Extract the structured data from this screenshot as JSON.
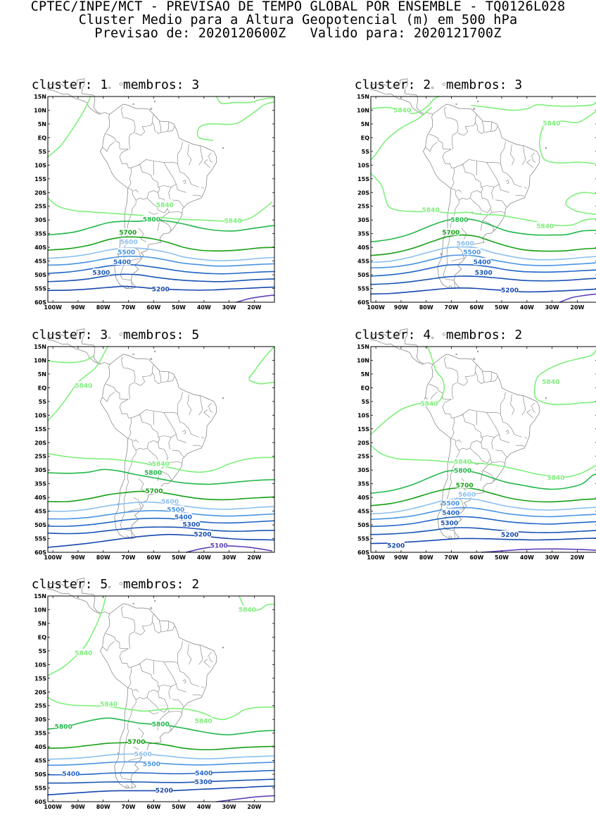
{
  "header": {
    "line1": "CPTEC/INPE/MCT - PREVISAO DE TEMPO GLOBAL POR ENSEMBLE - TQ0126L028",
    "line2": "Cluster Medio para a Altura Geopotencial (m) em 500 hPa",
    "line3": "Previsao de: 2020120600Z   Valido para: 2020121700Z"
  },
  "axes": {
    "lat_labels": [
      "15N",
      "10N",
      "5N",
      "EQ",
      "5S",
      "10S",
      "15S",
      "20S",
      "25S",
      "30S",
      "35S",
      "40S",
      "45S",
      "50S",
      "55S",
      "60S"
    ],
    "lon_labels": [
      "100W",
      "90W",
      "80W",
      "70W",
      "60W",
      "50W",
      "40W",
      "30W",
      "20W"
    ]
  },
  "level_colors": {
    "5840": "#7ef07a",
    "5800": "#22b84a",
    "5700": "#16a016",
    "5600": "#8cc0f0",
    "5500": "#4a94e2",
    "5400": "#2266c8",
    "5300": "#1a54b4",
    "5200": "#1648b0",
    "5100": "#6040b8"
  },
  "panels": [
    {
      "title": "cluster: 1  membros: 3",
      "labels": [
        {
          "text": "5840",
          "lon": -55.5,
          "lat": -24.5
        },
        {
          "text": "5840",
          "lon": -28.5,
          "lat": -30.3
        },
        {
          "text": "5800",
          "lon": -60.8,
          "lat": -29.8
        },
        {
          "text": "5700",
          "lon": -70.2,
          "lat": -34.6
        },
        {
          "text": "5600",
          "lon": -69.8,
          "lat": -38.0
        },
        {
          "text": "5500",
          "lon": -70.8,
          "lat": -41.8
        },
        {
          "text": "5400",
          "lon": -72.5,
          "lat": -45.4
        },
        {
          "text": "5300",
          "lon": -80.8,
          "lat": -49.2
        },
        {
          "text": "5200",
          "lon": -57.2,
          "lat": -55.2
        }
      ]
    },
    {
      "title": "cluster: 2  membros: 3",
      "labels": [
        {
          "text": "5840",
          "lon": -89.5,
          "lat": 10.0
        },
        {
          "text": "5840",
          "lon": -30.2,
          "lat": 5.2
        },
        {
          "text": "5840",
          "lon": -78.2,
          "lat": -26.4
        },
        {
          "text": "5840",
          "lon": -32.8,
          "lat": -32.2
        },
        {
          "text": "5800",
          "lon": -66.8,
          "lat": -30.0
        },
        {
          "text": "5700",
          "lon": -70.2,
          "lat": -34.6
        },
        {
          "text": "5600",
          "lon": -64.5,
          "lat": -38.6
        },
        {
          "text": "5500",
          "lon": -61.8,
          "lat": -41.8
        },
        {
          "text": "5400",
          "lon": -57.8,
          "lat": -45.4
        },
        {
          "text": "5300",
          "lon": -57.2,
          "lat": -49.2
        },
        {
          "text": "5200",
          "lon": -46.8,
          "lat": -55.6
        }
      ]
    },
    {
      "title": "cluster: 3  membros: 5",
      "labels": [
        {
          "text": "5840",
          "lon": -87.8,
          "lat": 0.8
        },
        {
          "text": "5840",
          "lon": -57.2,
          "lat": -27.8
        },
        {
          "text": "5800",
          "lon": -60.2,
          "lat": -31.0
        },
        {
          "text": "5700",
          "lon": -59.8,
          "lat": -37.6
        },
        {
          "text": "5600",
          "lon": -53.5,
          "lat": -41.5
        },
        {
          "text": "5500",
          "lon": -51.2,
          "lat": -44.5
        },
        {
          "text": "5400",
          "lon": -48.2,
          "lat": -47.2
        },
        {
          "text": "5300",
          "lon": -45.0,
          "lat": -49.8
        },
        {
          "text": "5200",
          "lon": -40.5,
          "lat": -53.5
        },
        {
          "text": "5100",
          "lon": -34.0,
          "lat": -57.5
        }
      ]
    },
    {
      "title": "cluster: 4  membros: 2",
      "labels": [
        {
          "text": "5840",
          "lon": -78.8,
          "lat": -5.8
        },
        {
          "text": "5840",
          "lon": -30.5,
          "lat": 2.2
        },
        {
          "text": "5840",
          "lon": -65.5,
          "lat": -27.0
        },
        {
          "text": "5840",
          "lon": -28.5,
          "lat": -32.8
        },
        {
          "text": "5800",
          "lon": -65.5,
          "lat": -30.2
        },
        {
          "text": "5700",
          "lon": -64.8,
          "lat": -35.6
        },
        {
          "text": "5600",
          "lon": -63.8,
          "lat": -39.0
        },
        {
          "text": "5500",
          "lon": -70.2,
          "lat": -42.2
        },
        {
          "text": "5400",
          "lon": -70.2,
          "lat": -45.6
        },
        {
          "text": "5300",
          "lon": -70.8,
          "lat": -49.4
        },
        {
          "text": "5200",
          "lon": -92.0,
          "lat": -57.6
        },
        {
          "text": "5200",
          "lon": -46.8,
          "lat": -53.6
        }
      ]
    },
    {
      "title": "cluster: 5  membros: 2",
      "labels": [
        {
          "text": "5840",
          "lon": -22.8,
          "lat": 10.0
        },
        {
          "text": "5840",
          "lon": -87.8,
          "lat": -5.8
        },
        {
          "text": "5840",
          "lon": -77.8,
          "lat": -24.4
        },
        {
          "text": "5840",
          "lon": -40.2,
          "lat": -30.6
        },
        {
          "text": "5800",
          "lon": -95.8,
          "lat": -32.6
        },
        {
          "text": "5800",
          "lon": -57.2,
          "lat": -31.8
        },
        {
          "text": "5700",
          "lon": -66.8,
          "lat": -38.2
        },
        {
          "text": "5600",
          "lon": -64.2,
          "lat": -42.6
        },
        {
          "text": "5500",
          "lon": -60.8,
          "lat": -46.2
        },
        {
          "text": "5400",
          "lon": -92.8,
          "lat": -49.8
        },
        {
          "text": "5400",
          "lon": -40.0,
          "lat": -49.6
        },
        {
          "text": "5300",
          "lon": -40.2,
          "lat": -52.8
        },
        {
          "text": "5200",
          "lon": -55.8,
          "lat": -55.9
        }
      ]
    }
  ]
}
